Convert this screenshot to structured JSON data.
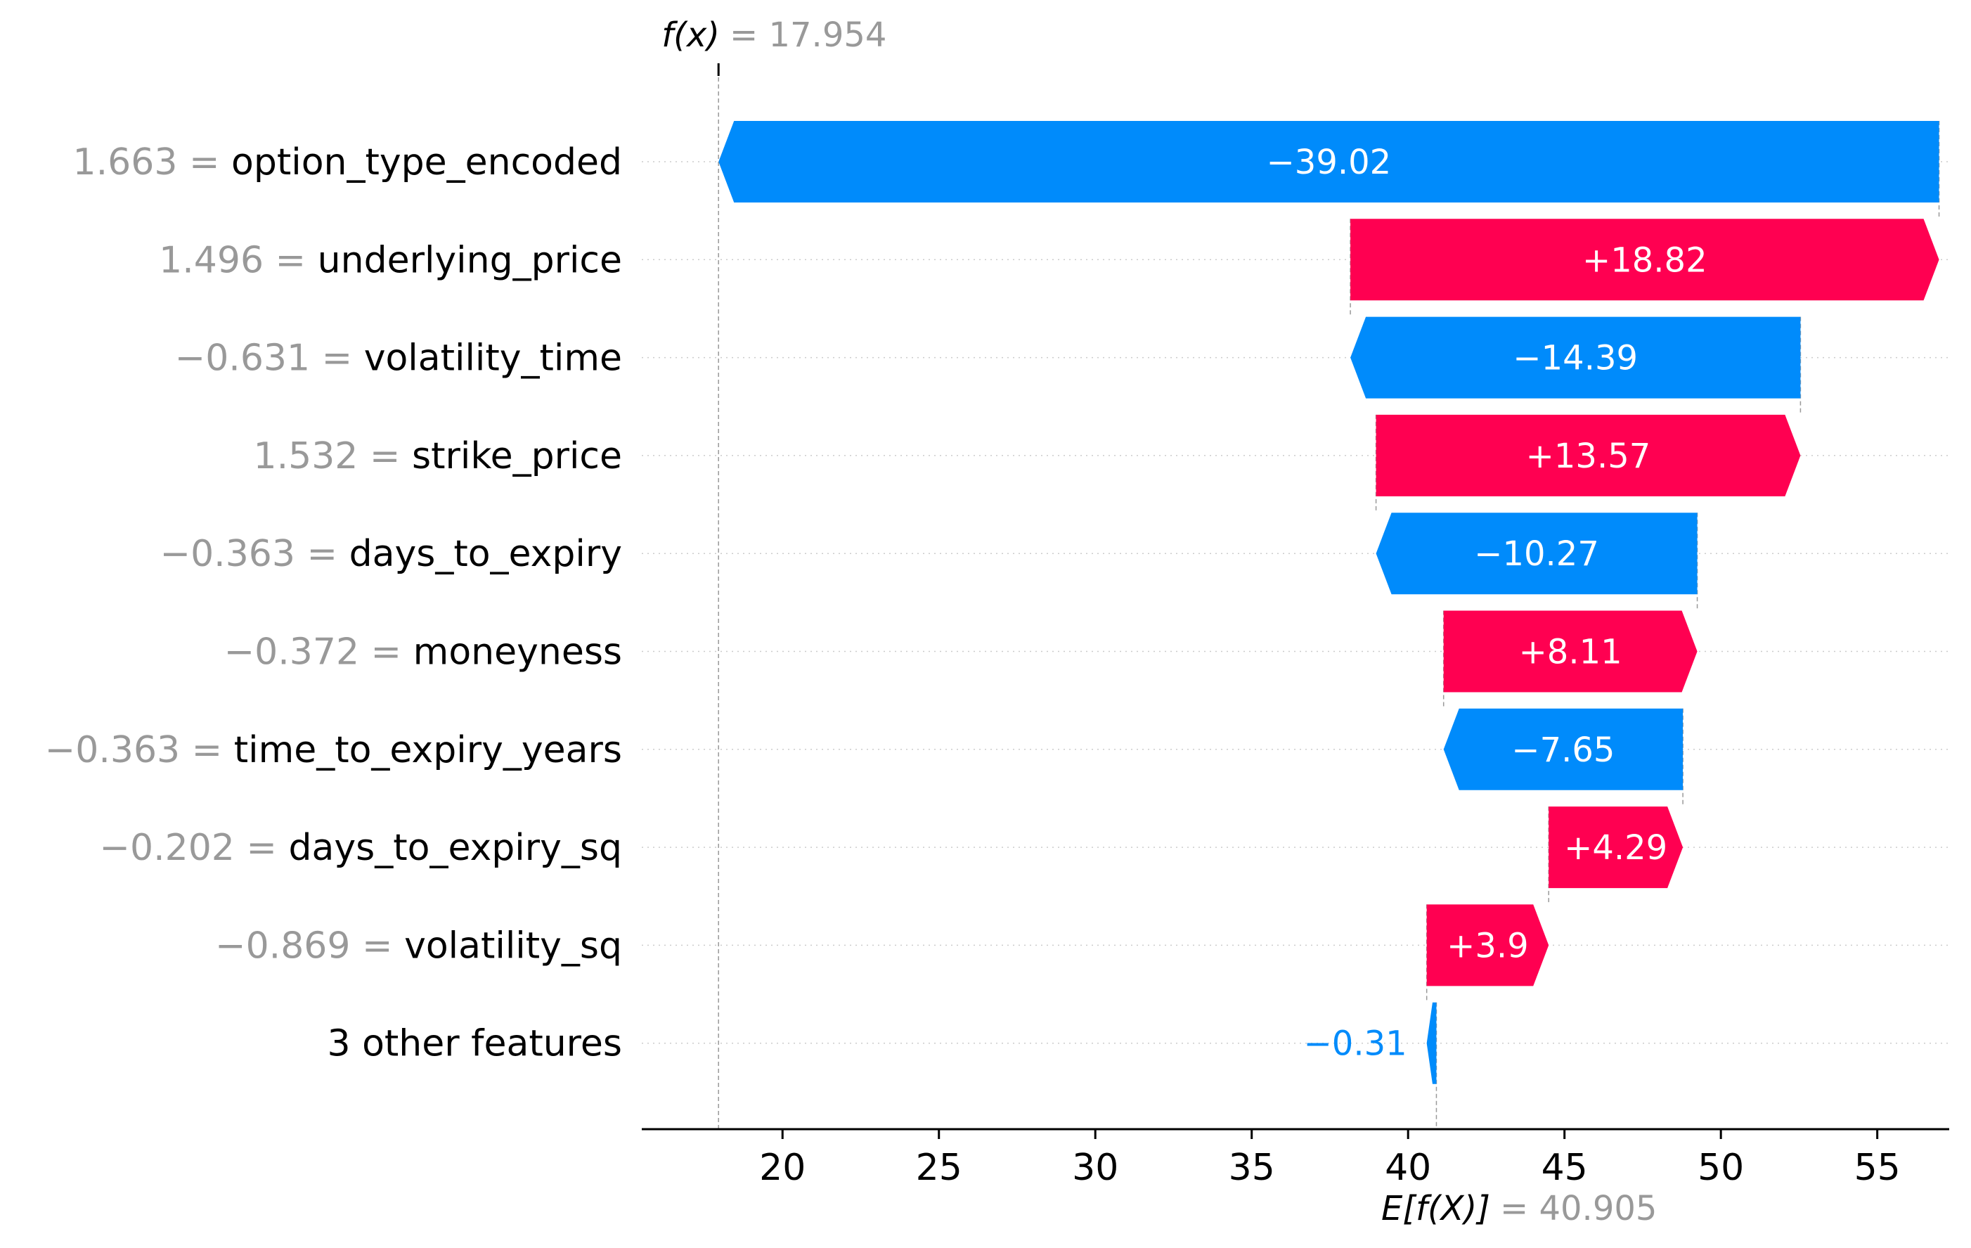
{
  "chart_data": {
    "type": "waterfall",
    "fx_label": "f(x)",
    "fx_value": "= 17.954",
    "fx": 17.954,
    "ex_label": "E[f(X)]",
    "ex_value": "= 40.905",
    "base_value": 40.905,
    "xlim": [
      15.5,
      57.3
    ],
    "x_ticks": [
      20,
      25,
      30,
      35,
      40,
      45,
      50,
      55
    ],
    "x_tick_labels": [
      "20",
      "25",
      "30",
      "35",
      "40",
      "45",
      "50",
      "55"
    ],
    "colors": {
      "positive": "#ff0051",
      "negative": "#008bfb",
      "value_text": "#999999"
    },
    "rows": [
      {
        "value_text": "1.663 =",
        "feature": "option_type_encoded",
        "contribution": -39.02,
        "label": "−39.02"
      },
      {
        "value_text": "1.496 =",
        "feature": "underlying_price",
        "contribution": 18.82,
        "label": "+18.82"
      },
      {
        "value_text": "−0.631 =",
        "feature": "volatility_time",
        "contribution": -14.39,
        "label": "−14.39"
      },
      {
        "value_text": "1.532 =",
        "feature": "strike_price",
        "contribution": 13.57,
        "label": "+13.57"
      },
      {
        "value_text": "−0.363 =",
        "feature": "days_to_expiry",
        "contribution": -10.27,
        "label": "−10.27"
      },
      {
        "value_text": "−0.372 =",
        "feature": "moneyness",
        "contribution": 8.11,
        "label": "+8.11"
      },
      {
        "value_text": "−0.363 =",
        "feature": "time_to_expiry_years",
        "contribution": -7.65,
        "label": "−7.65"
      },
      {
        "value_text": "−0.202 =",
        "feature": "days_to_expiry_sq",
        "contribution": 4.29,
        "label": "+4.29"
      },
      {
        "value_text": "−0.869 =",
        "feature": "volatility_sq",
        "contribution": 3.9,
        "label": "+3.9"
      },
      {
        "value_text": "",
        "feature": "3 other features",
        "contribution": -0.31,
        "label": "−0.31"
      }
    ]
  }
}
